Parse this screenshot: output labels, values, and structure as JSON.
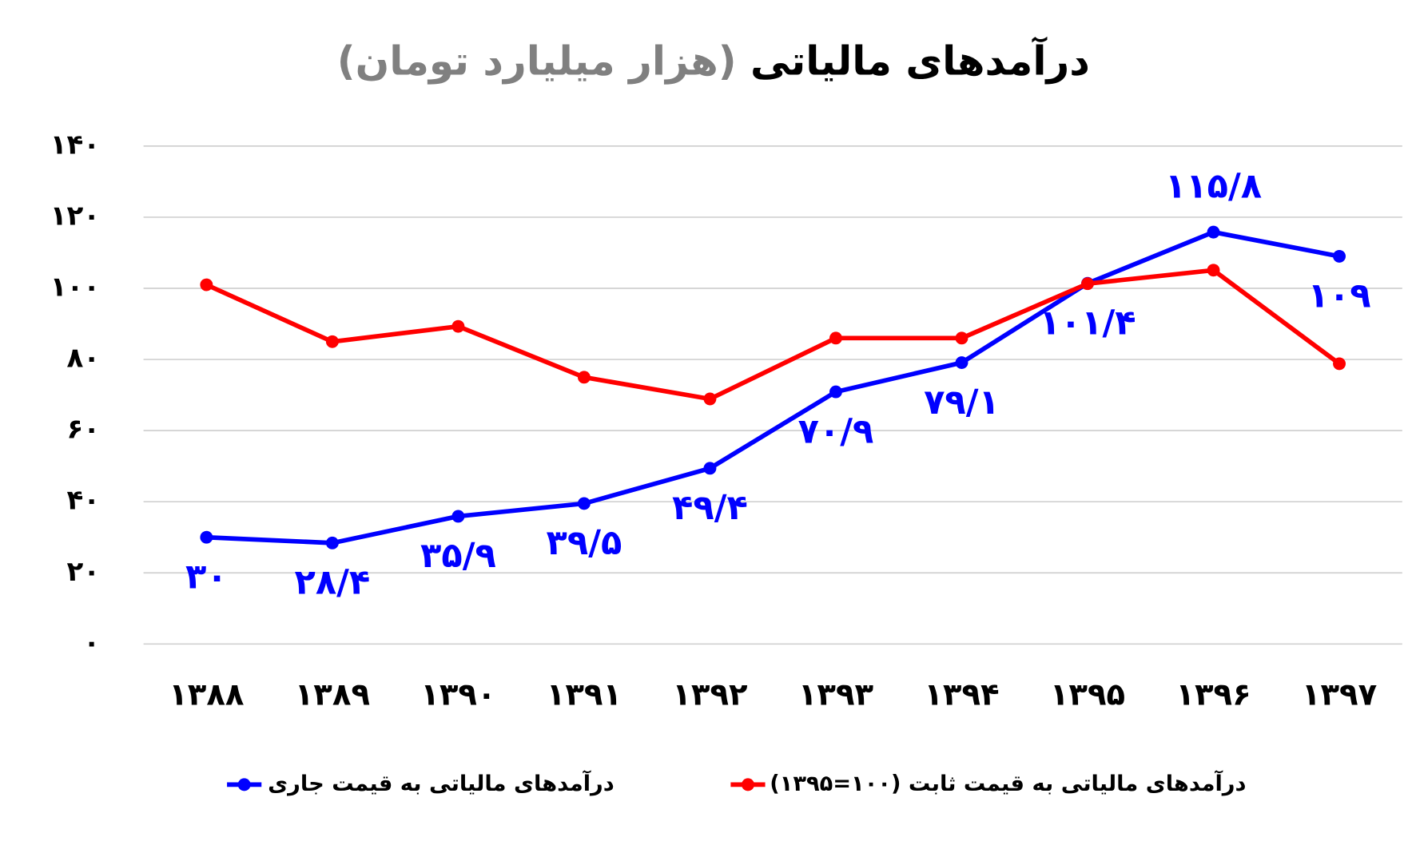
{
  "chart_data": {
    "type": "line",
    "title": "درآمدهای مالیاتی",
    "subtitle": "(هزار میلیارد تومان)",
    "categories": [
      "۱۳۸۸",
      "۱۳۸۹",
      "۱۳۹۰",
      "۱۳۹۱",
      "۱۳۹۲",
      "۱۳۹۳",
      "۱۳۹۴",
      "۱۳۹۵",
      "۱۳۹۶",
      "۱۳۹۷"
    ],
    "series": [
      {
        "name": "درآمدهای مالیاتی به قیمت جاری",
        "color": "#0000ff",
        "values": [
          30,
          28.4,
          35.9,
          39.5,
          49.4,
          70.9,
          79.1,
          101.4,
          115.8,
          109
        ],
        "value_labels": [
          "۳۰",
          "۲۸/۴",
          "۳۵/۹",
          "۳۹/۵",
          "۴۹/۴",
          "۷۰/۹",
          "۷۹/۱",
          "۱۰۱/۴",
          "۱۱۵/۸",
          "۱۰۹"
        ]
      },
      {
        "name": "درآمدهای مالیاتی به قیمت ثابت (۱۰۰=۱۳۹۵)",
        "color": "#ff0000",
        "values": [
          101,
          85,
          89.3,
          75,
          68.9,
          86,
          86,
          101.3,
          105.1,
          78.8
        ]
      }
    ],
    "ylim": [
      0,
      140
    ],
    "yticks": [
      {
        "value": 0,
        "label": "۰"
      },
      {
        "value": 20,
        "label": "۲۰"
      },
      {
        "value": 40,
        "label": "۴۰"
      },
      {
        "value": 60,
        "label": "۶۰"
      },
      {
        "value": 80,
        "label": "۸۰"
      },
      {
        "value": 100,
        "label": "۱۰۰"
      },
      {
        "value": 120,
        "label": "۱۲۰"
      },
      {
        "value": 140,
        "label": "۱۴۰"
      }
    ],
    "grid": true,
    "legend": "bottom"
  }
}
